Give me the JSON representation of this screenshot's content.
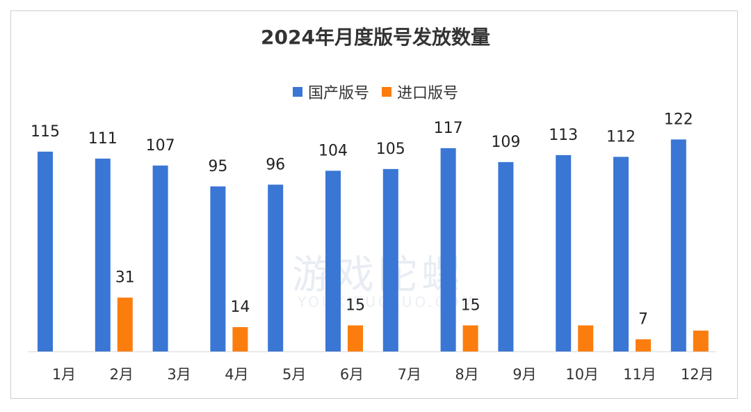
{
  "chart_data": {
    "type": "bar",
    "title": "2024年月度版号发放数量",
    "categories": [
      "1月",
      "2月",
      "3月",
      "4月",
      "5月",
      "6月",
      "7月",
      "8月",
      "9月",
      "10月",
      "11月",
      "12月"
    ],
    "series": [
      {
        "name": "国产版号",
        "color": "#3a76d4",
        "values": [
          115,
          111,
          107,
          95,
          96,
          104,
          105,
          117,
          109,
          113,
          112,
          122
        ],
        "labels": [
          "115",
          "111",
          "107",
          "95",
          "96",
          "104",
          "105",
          "117",
          "109",
          "113",
          "112",
          "122"
        ]
      },
      {
        "name": "进口版号",
        "color": "#fb7d0e",
        "values": [
          0,
          31,
          0,
          14,
          0,
          15,
          0,
          15,
          0,
          15,
          7,
          12
        ],
        "labels": [
          "",
          "31",
          "",
          "14",
          "",
          "15",
          "",
          "15",
          "",
          "",
          "7",
          ""
        ]
      }
    ],
    "ylim": [
      0,
      135
    ],
    "grid": false,
    "legend_position": "top"
  },
  "watermark": {
    "text": "游戏陀螺",
    "sub": "YOUXITUOLUO.COM"
  }
}
